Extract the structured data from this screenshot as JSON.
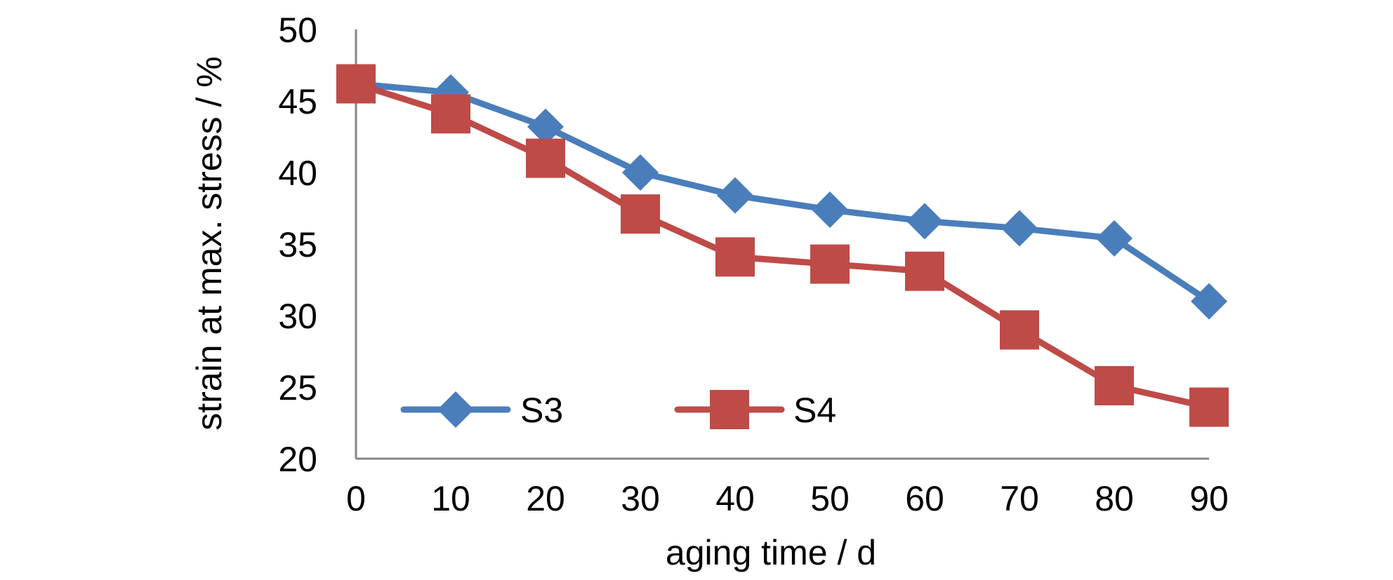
{
  "chart_data": {
    "type": "line",
    "title": "",
    "xlabel": "aging time / d",
    "ylabel": "strain at max. stress / %",
    "x": [
      0,
      10,
      20,
      30,
      40,
      50,
      60,
      70,
      80,
      90
    ],
    "x_tick_labels": [
      "0",
      "10",
      "20",
      "30",
      "40",
      "50",
      "60",
      "70",
      "80",
      "90"
    ],
    "ylim": [
      20,
      50
    ],
    "y_ticks": [
      20,
      25,
      30,
      35,
      40,
      45,
      50
    ],
    "y_tick_labels": [
      "20",
      "25",
      "30",
      "35",
      "40",
      "45",
      "50"
    ],
    "grid": false,
    "legend_position": "bottom-left",
    "series": [
      {
        "name": "S3",
        "marker": "diamond",
        "color": "#4a7ebb",
        "values": [
          46.2,
          45.6,
          43.2,
          40.0,
          38.4,
          37.4,
          36.6,
          36.1,
          35.4,
          31.0
        ]
      },
      {
        "name": "S4",
        "marker": "square",
        "color": "#be4b48",
        "values": [
          46.2,
          44.1,
          41.0,
          37.1,
          34.1,
          33.6,
          33.1,
          29.0,
          25.1,
          23.6
        ]
      }
    ]
  }
}
